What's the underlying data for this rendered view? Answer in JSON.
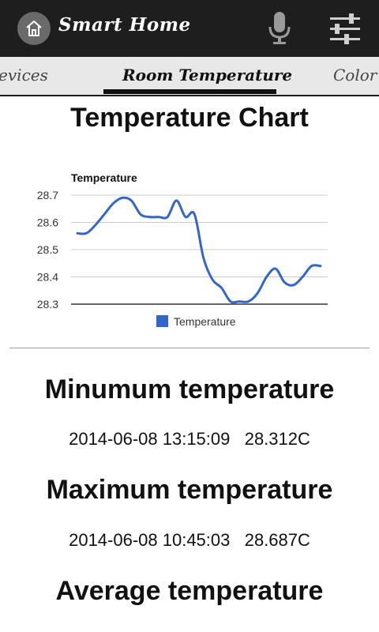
{
  "header": {
    "title": "Smart Home",
    "home_icon": "home-icon",
    "mic_icon": "microphone-icon",
    "settings_icon": "sliders-icon"
  },
  "tabs": [
    {
      "label": "Devices"
    },
    {
      "label": "Room Temperature",
      "active": true
    },
    {
      "label": "Color C"
    }
  ],
  "page_title": "Temperature Chart",
  "chart_data": {
    "type": "line",
    "title": "Temperature",
    "ylim": [
      28.3,
      28.7
    ],
    "yticks": [
      "28.7",
      "28.6",
      "28.5",
      "28.4",
      "28.3"
    ],
    "grid": true,
    "legend_position": "bottom",
    "series": [
      {
        "name": "Temperature",
        "color": "#3366cc",
        "values": [
          28.56,
          28.56,
          28.59,
          28.63,
          28.67,
          28.69,
          28.68,
          28.63,
          28.62,
          28.62,
          28.62,
          28.68,
          28.62,
          28.63,
          28.47,
          28.39,
          28.36,
          28.31,
          28.31,
          28.31,
          28.34,
          28.4,
          28.43,
          28.38,
          28.37,
          28.4,
          28.44,
          28.44
        ]
      }
    ]
  },
  "stats": {
    "min_heading": "Minumum temperature",
    "min_value": "2014-06-08 13:15:09   28.312C",
    "max_heading": "Maximum temperature",
    "max_value": "2014-06-08 10:45:03   28.687C",
    "avg_heading": "Average temperature"
  }
}
